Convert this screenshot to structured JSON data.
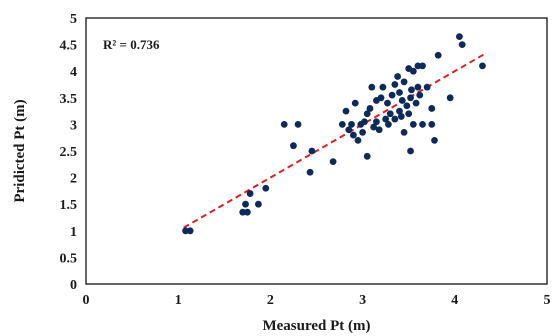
{
  "chart_data": {
    "type": "scatter",
    "xlabel": "Measured Pt (m)",
    "ylabel": "Pridicted Pt (m)",
    "xlim": [
      0,
      5
    ],
    "ylim": [
      0,
      5
    ],
    "x_ticks": [
      "0",
      "1",
      "2",
      "3",
      "4",
      "5"
    ],
    "y_ticks": [
      "0",
      "0.5",
      "1",
      "1.5",
      "2",
      "2.5",
      "3",
      "3.5",
      "4",
      "4.5",
      "5"
    ],
    "annotation": "R² = 0.736",
    "grid": false,
    "legend": "none",
    "colors": {
      "points": "#0d2a5c",
      "trendline": "#e02020",
      "frame": "#000000"
    },
    "trendline": {
      "style": "dashed",
      "x": [
        1.06,
        4.32
      ],
      "y": [
        1.06,
        4.32
      ]
    },
    "series": [
      {
        "points": [
          [
            1.08,
            1.0
          ],
          [
            1.13,
            1.0
          ],
          [
            1.7,
            1.35
          ],
          [
            1.75,
            1.35
          ],
          [
            1.73,
            1.5
          ],
          [
            1.78,
            1.7
          ],
          [
            1.87,
            1.5
          ],
          [
            1.95,
            1.8
          ],
          [
            2.15,
            3.0
          ],
          [
            2.25,
            2.6
          ],
          [
            2.3,
            3.0
          ],
          [
            2.43,
            2.1
          ],
          [
            2.45,
            2.5
          ],
          [
            2.68,
            2.3
          ],
          [
            2.78,
            3.0
          ],
          [
            2.82,
            3.25
          ],
          [
            2.85,
            2.9
          ],
          [
            2.88,
            3.0
          ],
          [
            2.9,
            2.8
          ],
          [
            2.92,
            3.4
          ],
          [
            2.95,
            2.7
          ],
          [
            2.98,
            3.0
          ],
          [
            3.0,
            2.85
          ],
          [
            3.02,
            3.05
          ],
          [
            3.05,
            2.4
          ],
          [
            3.05,
            3.2
          ],
          [
            3.08,
            3.3
          ],
          [
            3.1,
            3.7
          ],
          [
            3.12,
            2.95
          ],
          [
            3.15,
            3.05
          ],
          [
            3.15,
            3.45
          ],
          [
            3.18,
            2.9
          ],
          [
            3.2,
            3.5
          ],
          [
            3.22,
            3.7
          ],
          [
            3.25,
            3.1
          ],
          [
            3.27,
            3.4
          ],
          [
            3.28,
            3.0
          ],
          [
            3.3,
            3.2
          ],
          [
            3.32,
            3.55
          ],
          [
            3.35,
            3.1
          ],
          [
            3.35,
            3.75
          ],
          [
            3.38,
            3.9
          ],
          [
            3.4,
            3.25
          ],
          [
            3.4,
            3.6
          ],
          [
            3.42,
            3.15
          ],
          [
            3.43,
            3.45
          ],
          [
            3.45,
            2.85
          ],
          [
            3.45,
            3.8
          ],
          [
            3.48,
            3.35
          ],
          [
            3.5,
            3.2
          ],
          [
            3.5,
            4.05
          ],
          [
            3.52,
            2.5
          ],
          [
            3.52,
            3.5
          ],
          [
            3.53,
            3.65
          ],
          [
            3.55,
            3.0
          ],
          [
            3.55,
            4.0
          ],
          [
            3.58,
            3.4
          ],
          [
            3.6,
            3.7
          ],
          [
            3.6,
            4.1
          ],
          [
            3.62,
            3.55
          ],
          [
            3.65,
            3.0
          ],
          [
            3.65,
            4.1
          ],
          [
            3.7,
            3.7
          ],
          [
            3.75,
            3.3
          ],
          [
            3.75,
            3.0
          ],
          [
            3.78,
            2.7
          ],
          [
            3.82,
            4.3
          ],
          [
            3.95,
            3.5
          ],
          [
            4.05,
            4.65
          ],
          [
            4.08,
            4.5
          ],
          [
            4.3,
            4.1
          ]
        ]
      }
    ]
  }
}
